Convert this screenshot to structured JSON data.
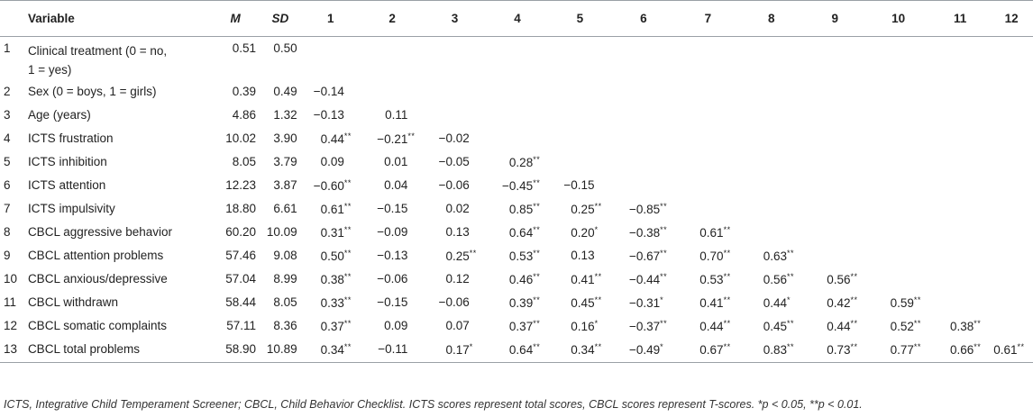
{
  "header": {
    "num": "",
    "variable": "Variable",
    "m": "M",
    "sd": "SD",
    "cols": [
      "1",
      "2",
      "3",
      "4",
      "5",
      "6",
      "7",
      "8",
      "9",
      "10",
      "11",
      "12"
    ]
  },
  "rows": [
    {
      "num": "1",
      "label": "Clinical treatment (0 = no, 1 = yes)",
      "label_lines": [
        "Clinical treatment (0 = no,",
        "1 = yes)"
      ],
      "m": "0.51",
      "sd": "0.50",
      "cells": []
    },
    {
      "num": "2",
      "label": "Sex (0 = boys, 1 = girls)",
      "m": "0.39",
      "sd": "0.49",
      "cells": [
        [
          "−0.14",
          ""
        ]
      ]
    },
    {
      "num": "3",
      "label": "Age (years)",
      "m": "4.86",
      "sd": "1.32",
      "cells": [
        [
          "−0.13",
          ""
        ],
        [
          "0.11",
          ""
        ]
      ]
    },
    {
      "num": "4",
      "label": "ICTS frustration",
      "m": "10.02",
      "sd": "3.90",
      "cells": [
        [
          "0.44",
          "**"
        ],
        [
          "−0.21",
          "**"
        ],
        [
          "−0.02",
          ""
        ]
      ]
    },
    {
      "num": "5",
      "label": "ICTS inhibition",
      "m": "8.05",
      "sd": "3.79",
      "cells": [
        [
          "0.09",
          ""
        ],
        [
          "0.01",
          ""
        ],
        [
          "−0.05",
          ""
        ],
        [
          "0.28",
          "**"
        ]
      ]
    },
    {
      "num": "6",
      "label": "ICTS attention",
      "m": "12.23",
      "sd": "3.87",
      "cells": [
        [
          "−0.60",
          "**"
        ],
        [
          "0.04",
          ""
        ],
        [
          "−0.06",
          ""
        ],
        [
          "−0.45",
          "**"
        ],
        [
          "−0.15",
          ""
        ]
      ]
    },
    {
      "num": "7",
      "label": "ICTS impulsivity",
      "m": "18.80",
      "sd": "6.61",
      "cells": [
        [
          "0.61",
          "**"
        ],
        [
          "−0.15",
          ""
        ],
        [
          "0.02",
          ""
        ],
        [
          "0.85",
          "**"
        ],
        [
          "0.25",
          "**"
        ],
        [
          "−0.85",
          "**"
        ]
      ]
    },
    {
      "num": "8",
      "label": "CBCL aggressive behavior",
      "m": "60.20",
      "sd": "10.09",
      "cells": [
        [
          "0.31",
          "**"
        ],
        [
          "−0.09",
          ""
        ],
        [
          "0.13",
          ""
        ],
        [
          "0.64",
          "**"
        ],
        [
          "0.20",
          "*"
        ],
        [
          "−0.38",
          "**"
        ],
        [
          "0.61",
          "**"
        ]
      ]
    },
    {
      "num": "9",
      "label": "CBCL attention problems",
      "m": "57.46",
      "sd": "9.08",
      "cells": [
        [
          "0.50",
          "**"
        ],
        [
          "−0.13",
          ""
        ],
        [
          "0.25",
          "**"
        ],
        [
          "0.53",
          "**"
        ],
        [
          "0.13",
          ""
        ],
        [
          "−0.67",
          "**"
        ],
        [
          "0.70",
          "**"
        ],
        [
          "0.63",
          "**"
        ]
      ]
    },
    {
      "num": "10",
      "label": "CBCL anxious/depressive",
      "m": "57.04",
      "sd": "8.99",
      "cells": [
        [
          "0.38",
          "**"
        ],
        [
          "−0.06",
          ""
        ],
        [
          "0.12",
          ""
        ],
        [
          "0.46",
          "**"
        ],
        [
          "0.41",
          "**"
        ],
        [
          "−0.44",
          "**"
        ],
        [
          "0.53",
          "**"
        ],
        [
          "0.56",
          "**"
        ],
        [
          "0.56",
          "**"
        ]
      ]
    },
    {
      "num": "11",
      "label": "CBCL withdrawn",
      "m": "58.44",
      "sd": "8.05",
      "cells": [
        [
          "0.33",
          "**"
        ],
        [
          "−0.15",
          ""
        ],
        [
          "−0.06",
          ""
        ],
        [
          "0.39",
          "**"
        ],
        [
          "0.45",
          "**"
        ],
        [
          "−0.31",
          "*"
        ],
        [
          "0.41",
          "**"
        ],
        [
          "0.44",
          "*"
        ],
        [
          "0.42",
          "**"
        ],
        [
          "0.59",
          "**"
        ]
      ]
    },
    {
      "num": "12",
      "label": "CBCL somatic complaints",
      "m": "57.11",
      "sd": "8.36",
      "cells": [
        [
          "0.37",
          "**"
        ],
        [
          "0.09",
          ""
        ],
        [
          "0.07",
          ""
        ],
        [
          "0.37",
          "**"
        ],
        [
          "0.16",
          "*"
        ],
        [
          "−0.37",
          "**"
        ],
        [
          "0.44",
          "**"
        ],
        [
          "0.45",
          "**"
        ],
        [
          "0.44",
          "**"
        ],
        [
          "0.52",
          "**"
        ],
        [
          "0.38",
          "**"
        ]
      ]
    },
    {
      "num": "13",
      "label": "CBCL total problems",
      "m": "58.90",
      "sd": "10.89",
      "cells": [
        [
          "0.34",
          "**"
        ],
        [
          "−0.11",
          ""
        ],
        [
          "0.17",
          "*"
        ],
        [
          "0.64",
          "**"
        ],
        [
          "0.34",
          "**"
        ],
        [
          "−0.49",
          "*"
        ],
        [
          "0.67",
          "**"
        ],
        [
          "0.83",
          "**"
        ],
        [
          "0.73",
          "**"
        ],
        [
          "0.77",
          "**"
        ],
        [
          "0.66",
          "**"
        ],
        [
          "0.61",
          "**"
        ]
      ]
    }
  ],
  "note": "ICTS, Integrative Child Temperament Screener; CBCL, Child Behavior Checklist. ICTS scores represent total scores, CBCL scores represent T-scores. *p < 0.05, **p < 0.01."
}
